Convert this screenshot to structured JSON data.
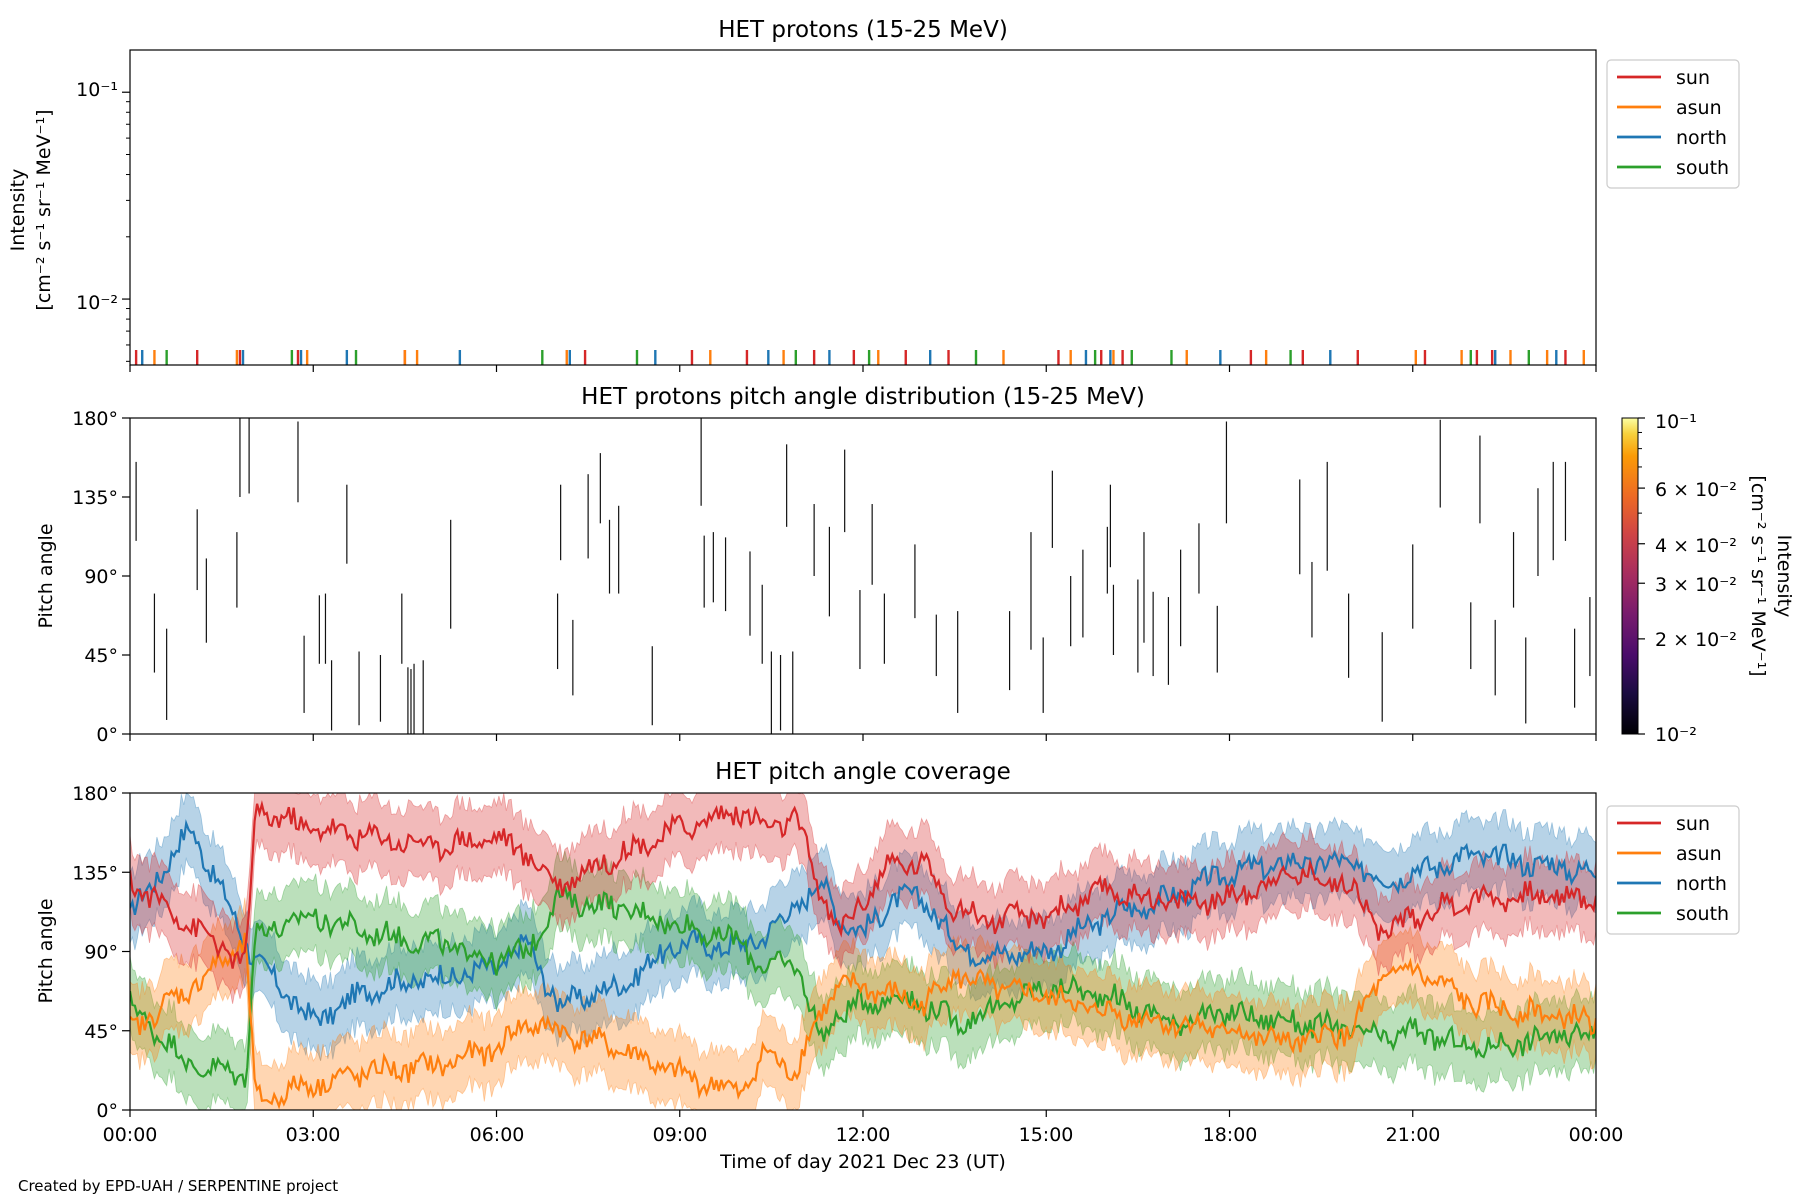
{
  "figure": {
    "credit": "Created by EPD-UAH / SERPENTINE project",
    "xlabel": "Time of day 2021 Dec 23 (UT)",
    "xticks": [
      "00:00",
      "03:00",
      "06:00",
      "09:00",
      "12:00",
      "15:00",
      "18:00",
      "21:00",
      "00:00"
    ],
    "xlim_hours": [
      0,
      24
    ]
  },
  "colors": {
    "sun": "#d62728",
    "asun": "#ff7f0e",
    "north": "#1f77b4",
    "south": "#2ca02c"
  },
  "legend_labels": [
    "sun",
    "asun",
    "north",
    "south"
  ],
  "panel1": {
    "title": "HET protons (15-25 MeV)",
    "ylabel_line1": "Intensity",
    "ylabel_line2": "[cm⁻² s⁻¹ sr⁻¹ MeV⁻¹]",
    "ytick_labels": [
      "10⁻¹",
      "10⁻²"
    ]
  },
  "panel2": {
    "title": "HET protons pitch angle distribution (15-25 MeV)",
    "ylabel": "Pitch angle",
    "ytick_labels": [
      "180°",
      "135°",
      "90°",
      "45°",
      "0°"
    ],
    "colorbar_label_line1": "Intensity",
    "colorbar_label_line2": "[cm⁻² s⁻¹ sr⁻¹ MeV⁻¹]",
    "colorbar_tick_labels": [
      "10⁻¹",
      "6 × 10⁻²",
      "4 × 10⁻²",
      "3 × 10⁻²",
      "2 × 10⁻²",
      "10⁻²"
    ]
  },
  "panel3": {
    "title": "HET pitch angle coverage",
    "ylabel": "Pitch angle",
    "ytick_labels": [
      "180°",
      "135°",
      "90°",
      "45°",
      "0°"
    ]
  },
  "chart_data": [
    {
      "type": "line",
      "title": "HET protons (15-25 MeV)",
      "yscale": "log",
      "ylim": [
        0.0048,
        0.16
      ],
      "xlim": [
        0,
        24
      ],
      "series": [
        {
          "name": "sun",
          "spike_hours": [
            0.1,
            1.1,
            1.8,
            2.75,
            4.5,
            7.45,
            9.2,
            10.1,
            11.2,
            11.85,
            12.7,
            13.4,
            15.2,
            15.9,
            16.25,
            18.35,
            19.2,
            20.1,
            21.2,
            22.05,
            22.3,
            23.5
          ]
        },
        {
          "name": "asun",
          "spike_hours": [
            0.4,
            1.75,
            2.9,
            4.5,
            4.7,
            7.15,
            9.5,
            10.7,
            12.25,
            14.3,
            15.4,
            16.1,
            17.3,
            18.6,
            21.05,
            21.8,
            22.6,
            23.2,
            23.8
          ]
        },
        {
          "name": "north",
          "spike_hours": [
            0.2,
            1.85,
            2.8,
            3.55,
            5.4,
            7.2,
            8.6,
            10.45,
            11.45,
            13.1,
            15.65,
            16.05,
            17.85,
            19.65,
            22.35,
            23.35
          ]
        },
        {
          "name": "south",
          "spike_hours": [
            0.6,
            2.65,
            3.7,
            6.75,
            8.3,
            10.9,
            12.1,
            13.85,
            15.8,
            16.4,
            17.05,
            19.0,
            21.95,
            22.9
          ]
        }
      ]
    },
    {
      "type": "heatmap",
      "title": "HET protons pitch angle distribution (15-25 MeV)",
      "ylim": [
        0,
        180
      ],
      "xlim": [
        0,
        24
      ],
      "colorscale": "inferno",
      "color_range": [
        0.01,
        0.1
      ],
      "segments": [
        [
          0.1,
          110,
          155
        ],
        [
          0.4,
          35,
          80
        ],
        [
          0.6,
          8,
          60
        ],
        [
          1.1,
          82,
          128
        ],
        [
          1.25,
          52,
          100
        ],
        [
          1.75,
          72,
          115
        ],
        [
          1.8,
          135,
          180
        ],
        [
          1.95,
          137,
          180
        ],
        [
          2.75,
          132,
          178
        ],
        [
          2.85,
          12,
          56
        ],
        [
          3.1,
          40,
          79
        ],
        [
          3.2,
          40,
          80
        ],
        [
          3.3,
          2,
          42
        ],
        [
          3.55,
          97,
          142
        ],
        [
          3.75,
          5,
          47
        ],
        [
          4.1,
          7,
          45
        ],
        [
          4.45,
          40,
          80
        ],
        [
          4.55,
          0,
          38
        ],
        [
          4.6,
          0,
          37
        ],
        [
          4.65,
          0,
          40
        ],
        [
          4.8,
          0,
          42
        ],
        [
          5.25,
          60,
          122
        ],
        [
          7.0,
          37,
          80
        ],
        [
          7.05,
          99,
          142
        ],
        [
          7.25,
          22,
          65
        ],
        [
          7.5,
          100,
          148
        ],
        [
          7.7,
          120,
          160
        ],
        [
          7.85,
          80,
          122
        ],
        [
          8.0,
          80,
          130
        ],
        [
          8.55,
          5,
          50
        ],
        [
          9.35,
          130,
          180
        ],
        [
          9.4,
          72,
          113
        ],
        [
          9.55,
          75,
          115
        ],
        [
          9.75,
          70,
          112
        ],
        [
          10.15,
          56,
          104
        ],
        [
          10.35,
          40,
          85
        ],
        [
          10.5,
          0,
          47
        ],
        [
          10.65,
          2,
          45
        ],
        [
          10.75,
          118,
          165
        ],
        [
          10.85,
          0,
          47
        ],
        [
          11.2,
          90,
          131
        ],
        [
          11.45,
          67,
          118
        ],
        [
          11.7,
          115,
          162
        ],
        [
          11.95,
          37,
          82
        ],
        [
          12.15,
          85,
          131
        ],
        [
          12.35,
          40,
          80
        ],
        [
          12.85,
          66,
          108
        ],
        [
          13.2,
          33,
          68
        ],
        [
          13.55,
          12,
          70
        ],
        [
          14.4,
          25,
          70
        ],
        [
          14.75,
          48,
          115
        ],
        [
          14.95,
          12,
          55
        ],
        [
          15.1,
          106,
          150
        ],
        [
          15.4,
          50,
          90
        ],
        [
          15.6,
          55,
          105
        ],
        [
          16.0,
          80,
          118
        ],
        [
          16.05,
          95,
          142
        ],
        [
          16.1,
          45,
          85
        ],
        [
          16.5,
          35,
          88
        ],
        [
          16.6,
          52,
          115
        ],
        [
          16.75,
          33,
          81
        ],
        [
          17.0,
          28,
          78
        ],
        [
          17.2,
          50,
          105
        ],
        [
          17.5,
          80,
          120
        ],
        [
          17.8,
          35,
          73
        ],
        [
          17.95,
          120,
          178
        ],
        [
          19.15,
          91,
          145
        ],
        [
          19.35,
          55,
          98
        ],
        [
          19.6,
          93,
          155
        ],
        [
          19.95,
          32,
          80
        ],
        [
          20.5,
          7,
          58
        ],
        [
          21.0,
          60,
          108
        ],
        [
          21.45,
          129,
          179
        ],
        [
          21.95,
          37,
          75
        ],
        [
          22.1,
          120,
          170
        ],
        [
          22.35,
          22,
          65
        ],
        [
          22.65,
          72,
          115
        ],
        [
          22.85,
          6,
          55
        ],
        [
          23.05,
          90,
          140
        ],
        [
          23.3,
          99,
          155
        ],
        [
          23.5,
          110,
          155
        ],
        [
          23.65,
          15,
          60
        ],
        [
          23.9,
          33,
          78
        ]
      ]
    },
    {
      "type": "line",
      "title": "HET pitch angle coverage",
      "ylim": [
        0,
        180
      ],
      "xlim": [
        0,
        24
      ],
      "xlabel": "Time of day 2021 Dec 23 (UT)",
      "ylabel": "Pitch angle",
      "band_halfwidth_deg": 20,
      "series": [
        {
          "name": "sun",
          "x": [
            0,
            1,
            1.9,
            2.05,
            3,
            4,
            5,
            6,
            6.5,
            7,
            8,
            9,
            10,
            10.4,
            10.9,
            11.3,
            11.6,
            12,
            12.5,
            13,
            13.5,
            14,
            15,
            16,
            17,
            18,
            19,
            20,
            20.5,
            21,
            22,
            23,
            24
          ],
          "y": [
            130,
            105,
            82,
            170,
            160,
            155,
            150,
            155,
            145,
            128,
            145,
            160,
            170,
            160,
            165,
            125,
            100,
            120,
            140,
            140,
            115,
            108,
            110,
            125,
            118,
            120,
            135,
            128,
            100,
            110,
            120,
            122,
            120
          ]
        },
        {
          "name": "asun",
          "x": [
            0,
            1,
            1.9,
            2.05,
            3,
            4,
            5,
            6,
            6.5,
            7,
            8,
            9,
            10,
            10.4,
            10.9,
            11.3,
            11.6,
            12,
            12.5,
            13,
            13.5,
            14,
            15,
            16,
            17,
            18,
            19,
            20,
            20.5,
            21,
            22,
            23,
            24
          ],
          "y": [
            45,
            70,
            95,
            5,
            15,
            22,
            25,
            35,
            50,
            45,
            35,
            20,
            10,
            32,
            22,
            55,
            70,
            70,
            65,
            60,
            78,
            70,
            65,
            55,
            50,
            45,
            38,
            45,
            75,
            80,
            60,
            55,
            50
          ]
        },
        {
          "name": "north",
          "x": [
            0,
            1,
            1.9,
            2.05,
            3,
            4,
            5,
            6,
            6.5,
            7,
            8,
            9,
            10,
            10.4,
            10.9,
            11.3,
            11.6,
            12,
            12.5,
            13,
            13.5,
            14,
            15,
            16,
            17,
            18,
            19,
            20,
            20.5,
            21,
            22,
            23,
            24
          ],
          "y": [
            110,
            160,
            95,
            85,
            50,
            70,
            75,
            80,
            95,
            60,
            70,
            95,
            92,
            100,
            115,
            130,
            110,
            100,
            120,
            120,
            95,
            88,
            90,
            110,
            120,
            135,
            140,
            140,
            130,
            135,
            145,
            140,
            135
          ]
        },
        {
          "name": "south",
          "x": [
            0,
            1,
            1.9,
            2.05,
            3,
            4,
            5,
            6,
            6.5,
            7,
            8,
            9,
            10,
            10.4,
            10.9,
            11.3,
            11.6,
            12,
            12.5,
            13,
            13.5,
            14,
            15,
            16,
            17,
            18,
            19,
            20,
            20.5,
            21,
            22,
            23,
            24
          ],
          "y": [
            60,
            25,
            20,
            100,
            110,
            100,
            95,
            85,
            90,
            120,
            115,
            105,
            95,
            80,
            85,
            40,
            55,
            60,
            65,
            60,
            50,
            55,
            70,
            65,
            50,
            55,
            50,
            45,
            40,
            45,
            35,
            40,
            45
          ]
        }
      ]
    }
  ]
}
